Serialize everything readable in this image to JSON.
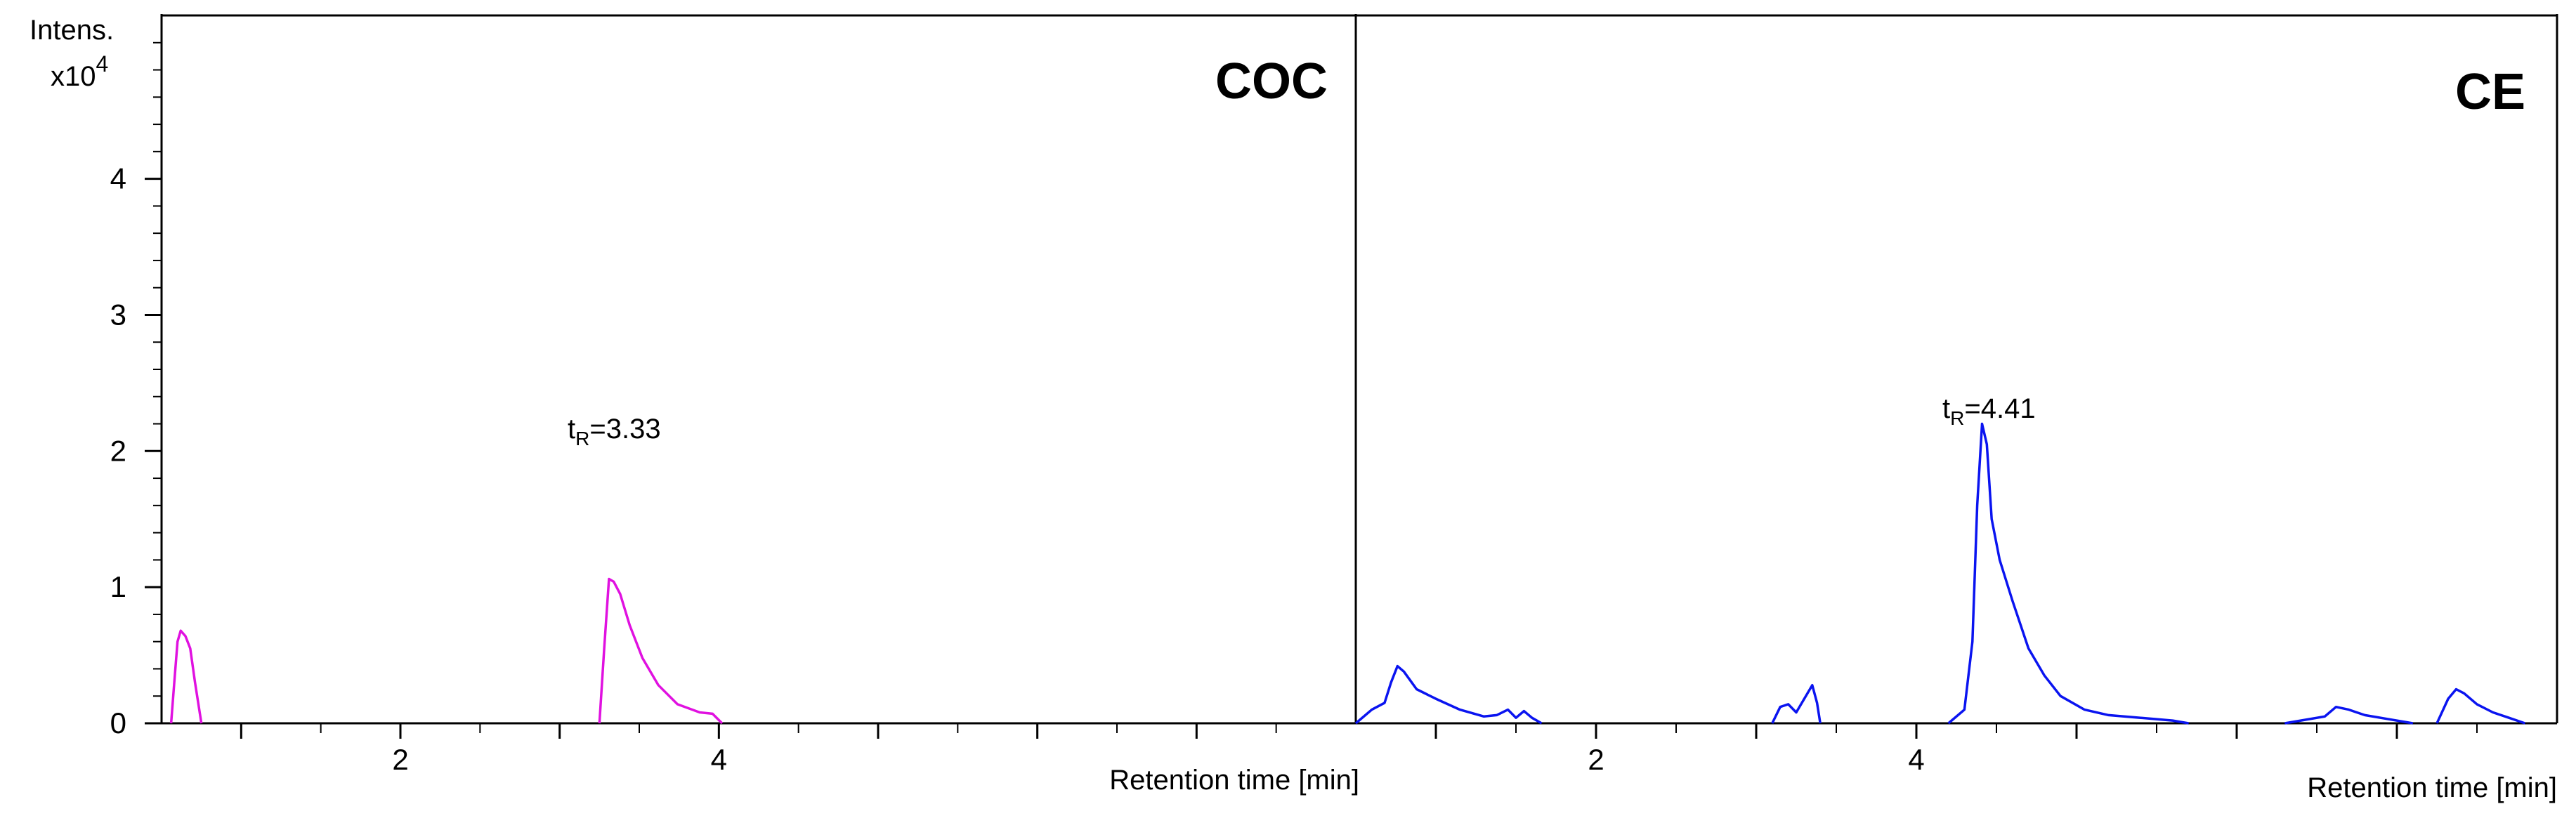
{
  "chart_data": [
    {
      "type": "line",
      "title": "COC",
      "annotation": {
        "label_main": "t",
        "label_sub": "R",
        "label_value": "=3.33",
        "x": 3.33
      },
      "xlabel": "Retention time [min]",
      "xlim": [
        0.5,
        8.0
      ],
      "ylim": [
        0,
        5.2
      ],
      "y_ticks": [
        0,
        1,
        2,
        3,
        4
      ],
      "x_ticks": [
        2,
        4
      ],
      "series": [
        {
          "color": "#e011e0",
          "segments": [
            [
              [
                0.56,
                0.0
              ],
              [
                0.58,
                0.3
              ],
              [
                0.6,
                0.6
              ],
              [
                0.62,
                0.68
              ],
              [
                0.65,
                0.64
              ],
              [
                0.68,
                0.55
              ],
              [
                0.71,
                0.3
              ],
              [
                0.75,
                0.0
              ]
            ],
            [
              [
                3.25,
                0.0
              ],
              [
                3.28,
                0.55
              ],
              [
                3.31,
                1.06
              ],
              [
                3.34,
                1.04
              ],
              [
                3.38,
                0.95
              ],
              [
                3.44,
                0.72
              ],
              [
                3.52,
                0.48
              ],
              [
                3.62,
                0.28
              ],
              [
                3.74,
                0.14
              ],
              [
                3.88,
                0.08
              ],
              [
                3.96,
                0.07
              ],
              [
                4.02,
                0.0
              ]
            ]
          ]
        }
      ]
    },
    {
      "type": "line",
      "title": "CE",
      "annotation": {
        "label_main": "t",
        "label_sub": "R",
        "label_value": "=4.41",
        "x": 4.41
      },
      "xlabel": "Retention time [min]",
      "xlim": [
        0.5,
        8.0
      ],
      "ylim": [
        0,
        5.2
      ],
      "x_ticks": [
        2,
        4
      ],
      "series": [
        {
          "color": "#0a14f0",
          "segments": [
            [
              [
                0.5,
                0.0
              ],
              [
                0.6,
                0.1
              ],
              [
                0.68,
                0.15
              ],
              [
                0.72,
                0.3
              ],
              [
                0.76,
                0.42
              ],
              [
                0.8,
                0.38
              ],
              [
                0.88,
                0.25
              ],
              [
                1.0,
                0.18
              ],
              [
                1.15,
                0.1
              ],
              [
                1.3,
                0.05
              ],
              [
                1.38,
                0.06
              ],
              [
                1.45,
                0.1
              ],
              [
                1.5,
                0.04
              ],
              [
                1.55,
                0.09
              ],
              [
                1.6,
                0.04
              ],
              [
                1.66,
                0.0
              ]
            ],
            [
              [
                3.1,
                0.0
              ],
              [
                3.15,
                0.12
              ],
              [
                3.2,
                0.14
              ],
              [
                3.25,
                0.08
              ],
              [
                3.3,
                0.18
              ],
              [
                3.35,
                0.28
              ],
              [
                3.38,
                0.15
              ],
              [
                3.4,
                0.0
              ]
            ],
            [
              [
                4.2,
                0.0
              ],
              [
                4.3,
                0.1
              ],
              [
                4.35,
                0.6
              ],
              [
                4.38,
                1.6
              ],
              [
                4.41,
                2.2
              ],
              [
                4.44,
                2.05
              ],
              [
                4.47,
                1.5
              ],
              [
                4.52,
                1.2
              ],
              [
                4.6,
                0.9
              ],
              [
                4.7,
                0.55
              ],
              [
                4.8,
                0.35
              ],
              [
                4.9,
                0.2
              ],
              [
                5.05,
                0.1
              ],
              [
                5.2,
                0.06
              ],
              [
                5.4,
                0.04
              ],
              [
                5.6,
                0.02
              ],
              [
                5.7,
                0.0
              ]
            ],
            [
              [
                6.3,
                0.0
              ],
              [
                6.4,
                0.02
              ],
              [
                6.55,
                0.05
              ],
              [
                6.62,
                0.12
              ],
              [
                6.7,
                0.1
              ],
              [
                6.8,
                0.06
              ],
              [
                6.95,
                0.03
              ],
              [
                7.1,
                0.0
              ]
            ],
            [
              [
                7.25,
                0.0
              ],
              [
                7.32,
                0.18
              ],
              [
                7.37,
                0.25
              ],
              [
                7.42,
                0.22
              ],
              [
                7.5,
                0.14
              ],
              [
                7.6,
                0.08
              ],
              [
                7.7,
                0.04
              ],
              [
                7.8,
                0.0
              ]
            ]
          ]
        }
      ]
    }
  ],
  "axis": {
    "ylabel_line1": "Intens.",
    "ylabel_line2_main": "x10",
    "ylabel_line2_sup": "4"
  }
}
